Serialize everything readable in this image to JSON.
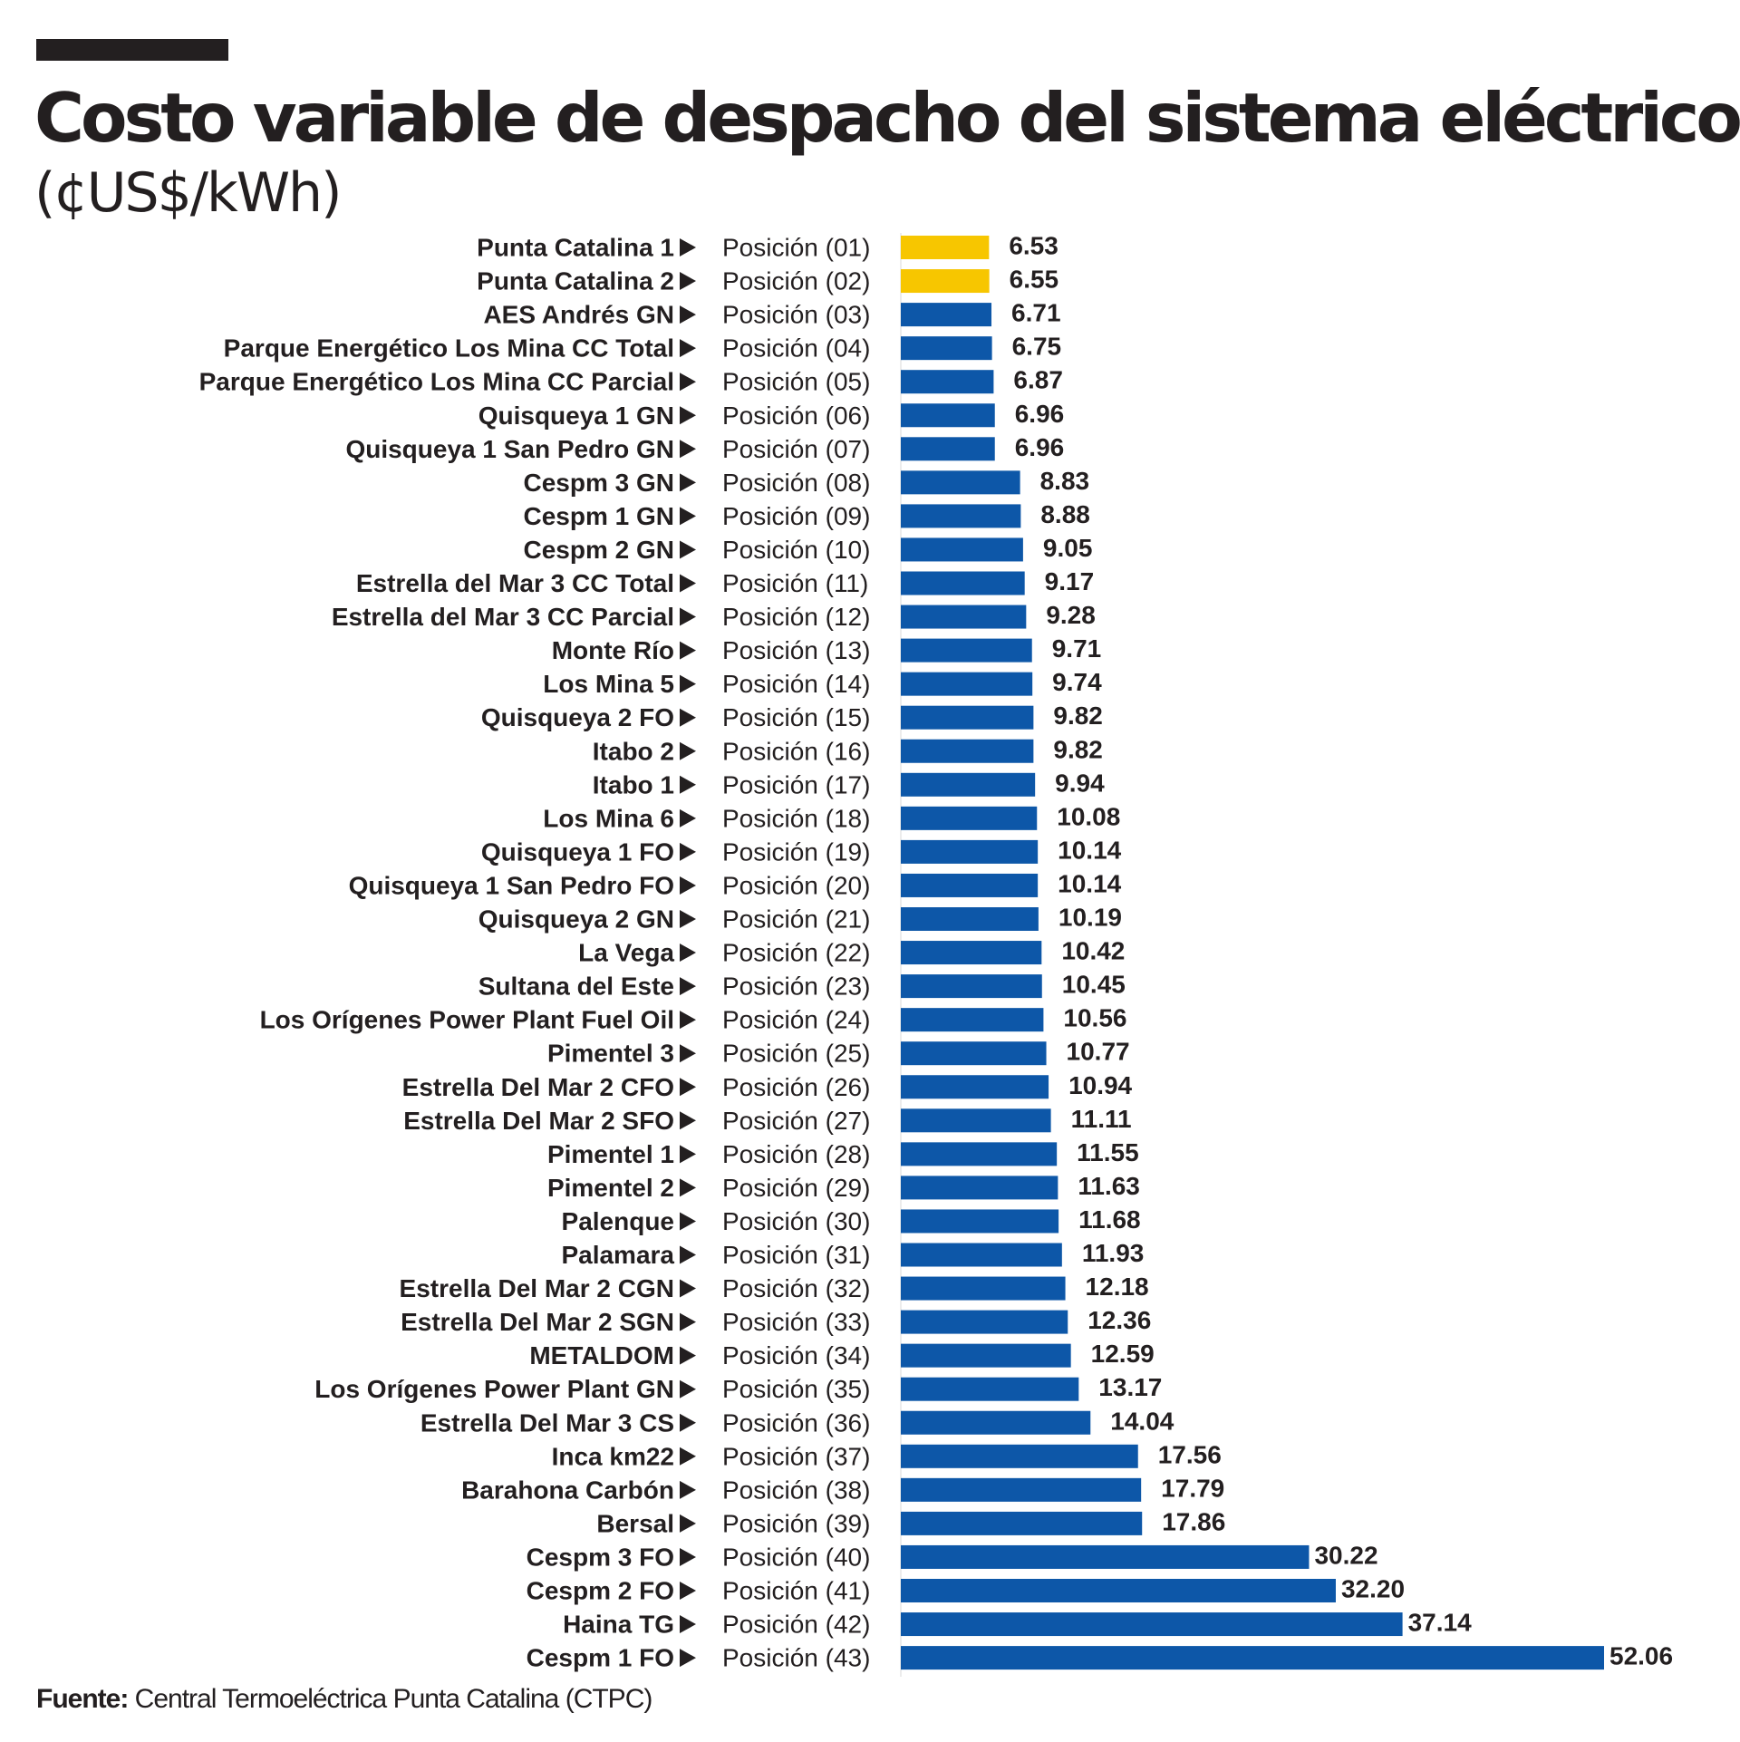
{
  "title": "Costo variable de despacho del sistema eléctrico",
  "subtitle": "(¢US$/kWh)",
  "source": {
    "label": "Fuente:",
    "text": "Central Termoeléctrica Punta Catalina (CTPC)"
  },
  "colors": {
    "highlight": "#f7c600",
    "bar": "#0d57a8",
    "text": "#231f20"
  },
  "chart_data": {
    "type": "bar",
    "orientation": "horizontal",
    "title": "Costo variable de despacho del sistema eléctrico",
    "unit": "¢US$/kWh",
    "xlabel": "",
    "ylabel": "",
    "xlim": [
      0,
      52.06
    ],
    "highlighted": [
      "Punta Catalina 1",
      "Punta Catalina 2"
    ],
    "categories": [
      "Punta Catalina 1",
      "Punta Catalina 2",
      "AES Andrés GN",
      "Parque Energético Los Mina CC Total",
      "Parque Energético Los Mina CC Parcial",
      "Quisqueya 1 GN",
      "Quisqueya 1 San Pedro GN",
      "Cespm 3 GN",
      "Cespm 1 GN",
      "Cespm 2 GN",
      "Estrella del Mar 3 CC Total",
      "Estrella del Mar 3 CC Parcial",
      "Monte Río",
      "Los Mina 5",
      "Quisqueya 2 FO",
      "Itabo 2",
      "Itabo 1",
      "Los Mina 6",
      "Quisqueya 1 FO",
      "Quisqueya 1 San Pedro FO",
      "Quisqueya 2 GN",
      "La Vega",
      "Sultana del Este",
      "Los Orígenes Power Plant Fuel Oil",
      "Pimentel 3",
      "Estrella Del Mar 2 CFO",
      "Estrella Del Mar 2 SFO",
      "Pimentel 1",
      "Pimentel 2",
      "Palenque",
      "Palamara",
      "Estrella Del Mar 2 CGN",
      "Estrella Del Mar 2 SGN",
      "METALDOM",
      "Los Orígenes Power Plant GN",
      "Estrella Del Mar 3 CS",
      "Inca km22",
      "Barahona Carbón",
      "Bersal",
      "Cespm 3 FO",
      "Cespm 2 FO",
      "Haina TG",
      "Cespm 1 FO"
    ],
    "positions": [
      "Posición (01)",
      "Posición (02)",
      "Posición (03)",
      "Posición (04)",
      "Posición (05)",
      "Posición (06)",
      "Posición (07)",
      "Posición (08)",
      "Posición (09)",
      "Posición (10)",
      "Posición (11)",
      "Posición (12)",
      "Posición (13)",
      "Posición (14)",
      "Posición (15)",
      "Posición (16)",
      "Posición (17)",
      "Posición (18)",
      "Posición (19)",
      "Posición (20)",
      "Posición (21)",
      "Posición (22)",
      "Posición (23)",
      "Posición (24)",
      "Posición (25)",
      "Posición (26)",
      "Posición (27)",
      "Posición (28)",
      "Posición (29)",
      "Posición (30)",
      "Posición (31)",
      "Posición (32)",
      "Posición (33)",
      "Posición (34)",
      "Posición (35)",
      "Posición (36)",
      "Posición (37)",
      "Posición (38)",
      "Posición (39)",
      "Posición (40)",
      "Posición (41)",
      "Posición (42)",
      "Posición (43)"
    ],
    "values": [
      6.53,
      6.55,
      6.71,
      6.75,
      6.87,
      6.96,
      6.96,
      8.83,
      8.88,
      9.05,
      9.17,
      9.28,
      9.71,
      9.74,
      9.82,
      9.82,
      9.94,
      10.08,
      10.14,
      10.14,
      10.19,
      10.42,
      10.45,
      10.56,
      10.77,
      10.94,
      11.11,
      11.55,
      11.63,
      11.68,
      11.93,
      12.18,
      12.36,
      12.59,
      13.17,
      14.04,
      17.56,
      17.79,
      17.86,
      30.22,
      32.2,
      37.14,
      52.06
    ],
    "value_labels": [
      "6.53",
      "6.55",
      "6.71",
      "6.75",
      "6.87",
      "6.96",
      "6.96",
      "8.83",
      "8.88",
      "9.05",
      "9.17",
      "9.28",
      "9.71",
      "9.74",
      "9.82",
      "9.82",
      "9.94",
      "10.08",
      "10.14",
      "10.14",
      "10.19",
      "10.42",
      "10.45",
      "10.56",
      "10.77",
      "10.94",
      "11.11",
      "11.55",
      "11.63",
      "11.68",
      "11.93",
      "12.18",
      "12.36",
      "12.59",
      "13.17",
      "14.04",
      "17.56",
      "17.79",
      "17.86",
      "30.22",
      "32.20",
      "37.14",
      "52.06"
    ]
  }
}
